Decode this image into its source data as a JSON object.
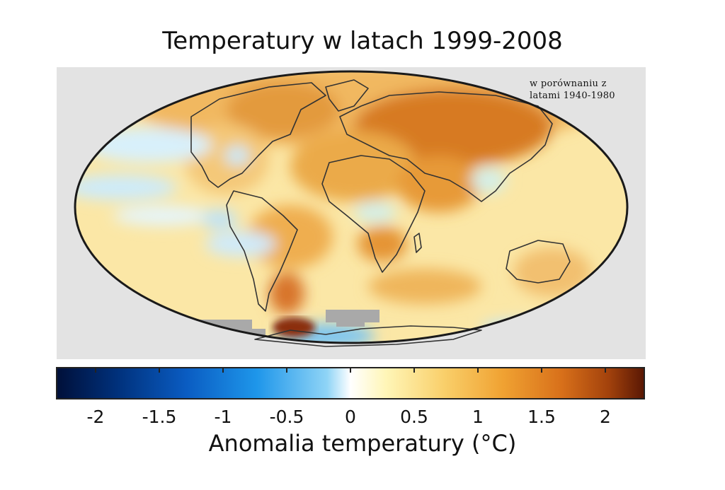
{
  "title": "Temperatury w latach 1999-2008",
  "note_lines": [
    "w porównaniu z",
    "latami 1940-1980"
  ],
  "colorbar": {
    "label": "Anomalia temperatury (°C)",
    "min": -2.3,
    "max": 2.3,
    "ticks": [
      {
        "value": -2,
        "label": "-2"
      },
      {
        "value": -1.5,
        "label": "-1.5"
      },
      {
        "value": -1,
        "label": "-1"
      },
      {
        "value": -0.5,
        "label": "-0.5"
      },
      {
        "value": 0,
        "label": "0"
      },
      {
        "value": 0.5,
        "label": "0.5"
      },
      {
        "value": 1,
        "label": "1"
      },
      {
        "value": 1.5,
        "label": "1.5"
      },
      {
        "value": 2,
        "label": "2"
      }
    ]
  },
  "colors": {
    "background_panel": "#e3e3e3",
    "warm_anomaly": "#e8962a",
    "strong_warm": "#a3420c",
    "cool_anomaly": "#bfe6fb",
    "no_data": "#a9a9a9",
    "outline": "#222222"
  }
}
